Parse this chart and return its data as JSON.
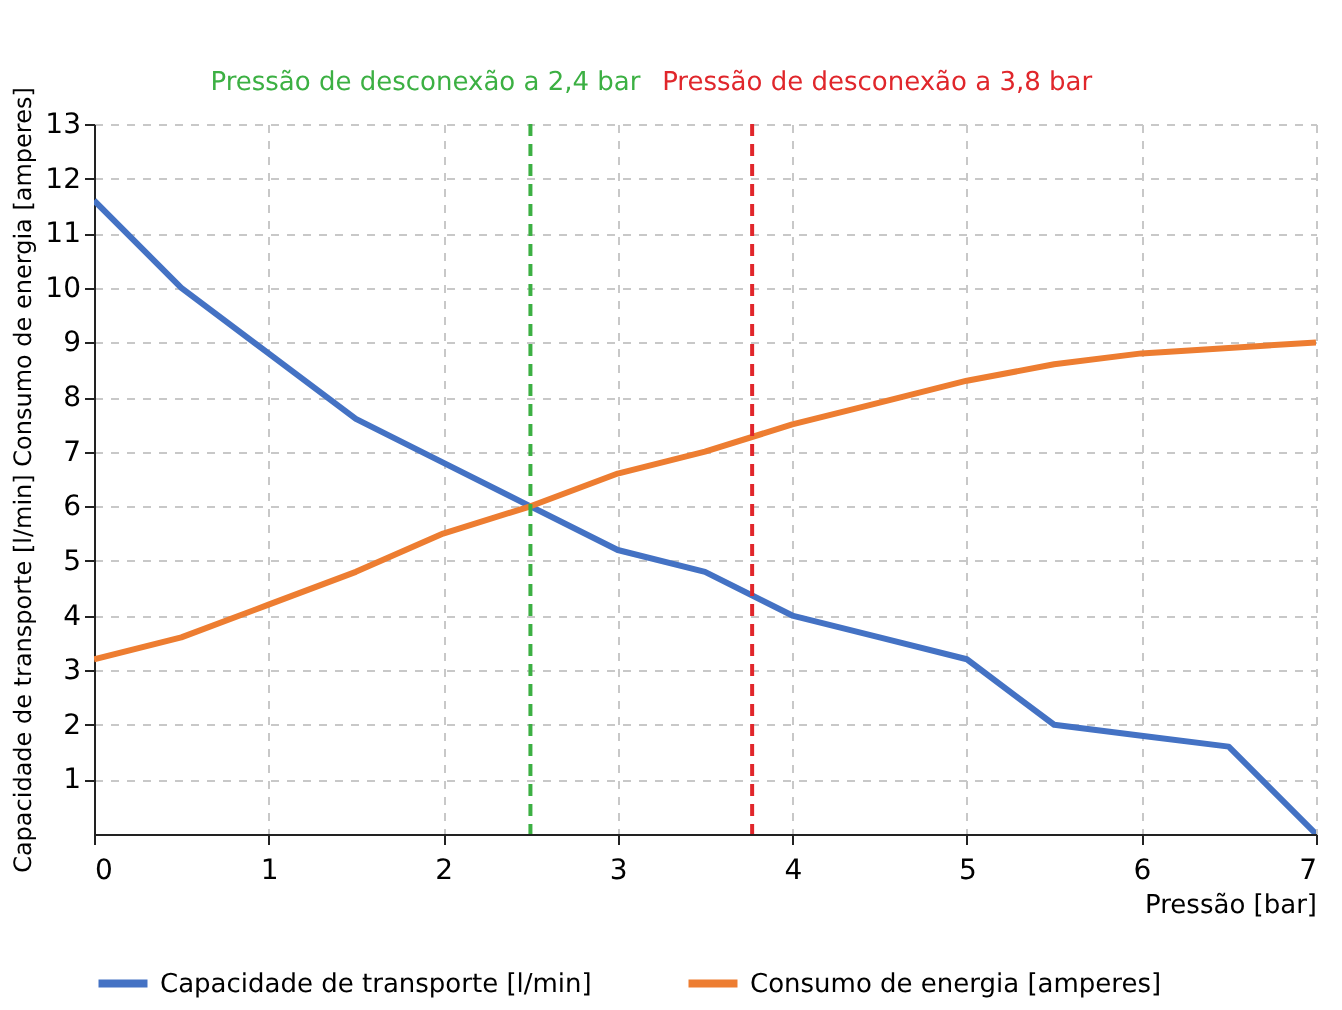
{
  "chart_data": {
    "type": "line",
    "xlabel": "Pressão [bar]",
    "ylabel": "Capacidade de transporte [l/min]          Consumo de energia [amperes]",
    "x": [
      0,
      0.5,
      1,
      1.5,
      2,
      2.5,
      3,
      3.5,
      4,
      4.5,
      5,
      5.5,
      6,
      6.5,
      7
    ],
    "series": [
      {
        "name": "Capacidade de transporte [l/min]",
        "color": "#4472c4",
        "values": [
          11.6,
          10,
          8.8,
          7.6,
          6.8,
          6,
          5.2,
          4.8,
          4,
          3.6,
          3.2,
          2,
          1.8,
          1.6,
          0
        ]
      },
      {
        "name": "Consumo de energia [amperes]",
        "color": "#ed7d31",
        "values": [
          3.2,
          3.6,
          4.2,
          4.8,
          5.5,
          6,
          6.6,
          7,
          7.5,
          7.9,
          8.3,
          8.6,
          8.8,
          8.9,
          9
        ]
      }
    ],
    "xlim": [
      0,
      7
    ],
    "xticks": [
      0,
      1,
      2,
      3,
      4,
      5,
      6,
      7
    ],
    "ylim": [
      0,
      13
    ],
    "yticks": [
      1,
      2,
      3,
      4,
      5,
      6,
      7,
      8,
      9,
      10,
      11,
      12,
      13
    ],
    "ref_lines": [
      {
        "axis": "x",
        "value": 2.5,
        "label": "Pressão de desconexão a 2,4 bar",
        "color": "#3cb043",
        "line_style": "dashed"
      },
      {
        "axis": "x",
        "value": 3.77,
        "label": "Pressão de desconexão a 3,8 bar",
        "color": "#e0262b",
        "line_style": "dashed"
      }
    ],
    "grid": true,
    "legend": "bottom",
    "marker": "none",
    "line_style": "solid"
  }
}
